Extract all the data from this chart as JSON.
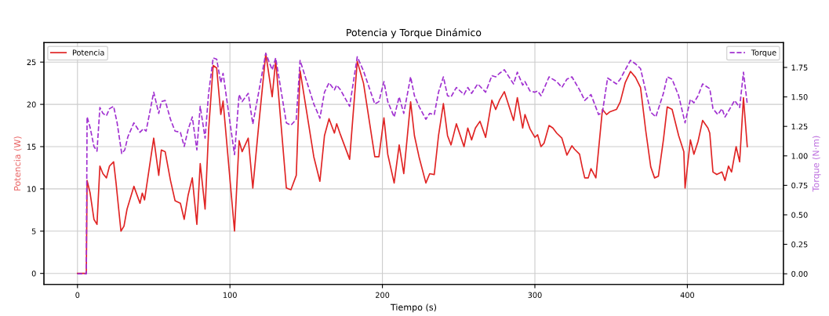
{
  "chart_data": {
    "type": "line",
    "title": "Potencia y Torque Dinámico",
    "xlabel": "Tiempo (s)",
    "ylabel": "Potencia (W)",
    "y2label": "Torque (N·m)",
    "xlim": [
      -22,
      463
    ],
    "xticks": [
      0,
      100,
      200,
      300,
      400
    ],
    "ylim": [
      -1.3,
      27.3
    ],
    "yticks": [
      0,
      5,
      10,
      15,
      20,
      25
    ],
    "y2lim": [
      -0.09,
      1.96
    ],
    "y2ticks": [
      {
        "value": 0,
        "label": "0.00"
      },
      {
        "value": 0.25,
        "label": "0.25"
      },
      {
        "value": 0.5,
        "label": "0.50"
      },
      {
        "value": 0.75,
        "label": "0.75"
      },
      {
        "value": 1.0,
        "label": "1.00"
      },
      {
        "value": 1.25,
        "label": "1.25"
      },
      {
        "value": 1.5,
        "label": "1.50"
      },
      {
        "value": 1.75,
        "label": "1.75"
      }
    ],
    "grid": true,
    "legend": "top left",
    "series": [
      {
        "name": "Potencia",
        "color": "#e02424",
        "line_style": "solid",
        "x": [
          0,
          5.8,
          6.3,
          8.3,
          10.8,
          12.8,
          14.7,
          16.7,
          19,
          21,
          23.7,
          25.3,
          28.5,
          30.5,
          32.5,
          37,
          41,
          42.5,
          44,
          50,
          53.3,
          55,
          57.5,
          61,
          64,
          67.5,
          70,
          72.5,
          75.3,
          78.3,
          80.5,
          83.7,
          86,
          89,
          91.3,
          94,
          95.5,
          103,
          106,
          108,
          112,
          115,
          119,
          123.5,
          127.7,
          130,
          137,
          140,
          143.5,
          146,
          155,
          159,
          162,
          165,
          168.5,
          170,
          172.5,
          178.5,
          183.5,
          187.6,
          195,
          197.7,
          201,
          203.5,
          207.7,
          211,
          214,
          218.5,
          221,
          224,
          228.5,
          231,
          234,
          236.8,
          240,
          242.7,
          245,
          248.5,
          253.5,
          256,
          258.5,
          261,
          264,
          267.7,
          271.8,
          274.3,
          276.8,
          280,
          286,
          288.5,
          292,
          293.5,
          296.8,
          300,
          301.8,
          304,
          306,
          309.3,
          311.8,
          314.3,
          317.7,
          321,
          324.3,
          326,
          329.3,
          331,
          332.7,
          335,
          336.8,
          340,
          344.3,
          347,
          349,
          353.5,
          356,
          359.3,
          362.7,
          366,
          369.3,
          372.7,
          376,
          378.5,
          381,
          384.3,
          386.8,
          390,
          394.3,
          397.7,
          398.5,
          402,
          404.3,
          407,
          410,
          413.5,
          414.7,
          416.8,
          419.3,
          422.7,
          424.7,
          427,
          429,
          432,
          434.3,
          436.8,
          439.3
        ],
        "values": [
          0,
          0,
          11.0,
          9.5,
          6.4,
          5.8,
          12.7,
          11.8,
          11.3,
          12.7,
          13.2,
          10.7,
          5.0,
          5.6,
          7.6,
          10.3,
          8.3,
          9.5,
          8.7,
          16.0,
          11.6,
          14.6,
          14.4,
          11.0,
          8.6,
          8.3,
          6.4,
          9.2,
          11.3,
          5.8,
          13.0,
          7.6,
          16.9,
          24.6,
          24.3,
          18.8,
          20.4,
          5.0,
          15.7,
          14.4,
          16.0,
          10.1,
          17.8,
          26.0,
          20.9,
          25.2,
          10.1,
          9.9,
          11.6,
          24.0,
          13.8,
          10.9,
          16.3,
          18.3,
          16.6,
          17.7,
          16.4,
          13.5,
          25.1,
          22.5,
          13.8,
          13.8,
          18.4,
          14.1,
          10.7,
          15.2,
          11.8,
          20.3,
          16.3,
          13.8,
          10.7,
          11.8,
          11.7,
          16.3,
          20.1,
          16.3,
          15.2,
          17.7,
          15.0,
          17.2,
          15.8,
          17.2,
          18.0,
          16.1,
          20.5,
          19.4,
          20.5,
          21.5,
          18.1,
          20.8,
          17.2,
          18.8,
          17.1,
          16.1,
          16.4,
          15.0,
          15.4,
          17.5,
          17.2,
          16.6,
          16.0,
          14.0,
          15.1,
          14.7,
          14.1,
          12.6,
          11.3,
          11.3,
          12.4,
          11.3,
          19.4,
          18.8,
          19.1,
          19.4,
          20.3,
          22.6,
          23.9,
          23.2,
          22.0,
          16.9,
          12.6,
          11.3,
          11.5,
          15.8,
          19.7,
          19.4,
          16.3,
          14.4,
          10.1,
          15.8,
          14.1,
          15.6,
          18.1,
          17.2,
          16.6,
          12.0,
          11.7,
          12.0,
          11.0,
          12.7,
          12.0,
          15.0,
          13.2,
          20.8,
          15.0
        ]
      },
      {
        "name": "Torque",
        "color": "#a030d0",
        "axis": "y2",
        "line_style": "dashed",
        "x": [
          0,
          5.8,
          6.3,
          8.3,
          10.8,
          12.8,
          14.7,
          16.7,
          19,
          21,
          23.7,
          26,
          29,
          31,
          33,
          37,
          41,
          43.3,
          45,
          50,
          53.3,
          55,
          57.5,
          61,
          64,
          67.5,
          70,
          72.5,
          75.3,
          78.3,
          80.5,
          83.7,
          86,
          89,
          91.3,
          94,
          95.5,
          103,
          106,
          108,
          112,
          115,
          119,
          123.5,
          127.7,
          130,
          137,
          140,
          143.5,
          146,
          155,
          159,
          162,
          165,
          168.5,
          170,
          172.5,
          178.5,
          183.5,
          187.6,
          195,
          197.7,
          201,
          203.5,
          207.7,
          211,
          214,
          218.5,
          221,
          224,
          228.5,
          231,
          234,
          236.8,
          240,
          242.7,
          245,
          248.5,
          253.5,
          256,
          258.5,
          262.5,
          267.7,
          271.8,
          274.3,
          276.8,
          280,
          286,
          288.5,
          292,
          293.5,
          296.8,
          300,
          301.8,
          304,
          306,
          309.3,
          314.3,
          317.7,
          321,
          324.3,
          329.3,
          332.7,
          336.8,
          341.8,
          344.3,
          347.7,
          353.5,
          356,
          359.3,
          362.7,
          366,
          369.3,
          372.7,
          376,
          379.3,
          384.3,
          386.8,
          390,
          394.3,
          398.5,
          402,
          404.3,
          407,
          410,
          414.7,
          416.8,
          420,
          422.7,
          424.7,
          427,
          431,
          434.3,
          436.8,
          439.3
        ],
        "values": [
          0,
          0,
          1.33,
          1.24,
          1.08,
          1.04,
          1.41,
          1.36,
          1.34,
          1.4,
          1.42,
          1.28,
          1.02,
          1.05,
          1.16,
          1.28,
          1.2,
          1.23,
          1.21,
          1.54,
          1.36,
          1.46,
          1.47,
          1.31,
          1.21,
          1.2,
          1.08,
          1.22,
          1.33,
          1.05,
          1.42,
          1.15,
          1.53,
          1.83,
          1.82,
          1.62,
          1.7,
          1.01,
          1.52,
          1.46,
          1.53,
          1.27,
          1.55,
          1.87,
          1.73,
          1.83,
          1.28,
          1.26,
          1.31,
          1.81,
          1.44,
          1.32,
          1.54,
          1.62,
          1.56,
          1.6,
          1.56,
          1.42,
          1.84,
          1.72,
          1.44,
          1.46,
          1.63,
          1.46,
          1.33,
          1.5,
          1.36,
          1.67,
          1.51,
          1.42,
          1.31,
          1.36,
          1.35,
          1.54,
          1.67,
          1.51,
          1.5,
          1.58,
          1.52,
          1.58,
          1.53,
          1.61,
          1.54,
          1.68,
          1.67,
          1.7,
          1.73,
          1.61,
          1.71,
          1.6,
          1.63,
          1.55,
          1.54,
          1.55,
          1.51,
          1.57,
          1.67,
          1.63,
          1.58,
          1.65,
          1.67,
          1.56,
          1.47,
          1.52,
          1.35,
          1.37,
          1.66,
          1.61,
          1.65,
          1.73,
          1.81,
          1.78,
          1.74,
          1.55,
          1.37,
          1.33,
          1.53,
          1.67,
          1.65,
          1.51,
          1.28,
          1.48,
          1.45,
          1.51,
          1.61,
          1.57,
          1.4,
          1.35,
          1.4,
          1.33,
          1.38,
          1.47,
          1.41,
          1.71,
          1.44
        ]
      }
    ]
  }
}
